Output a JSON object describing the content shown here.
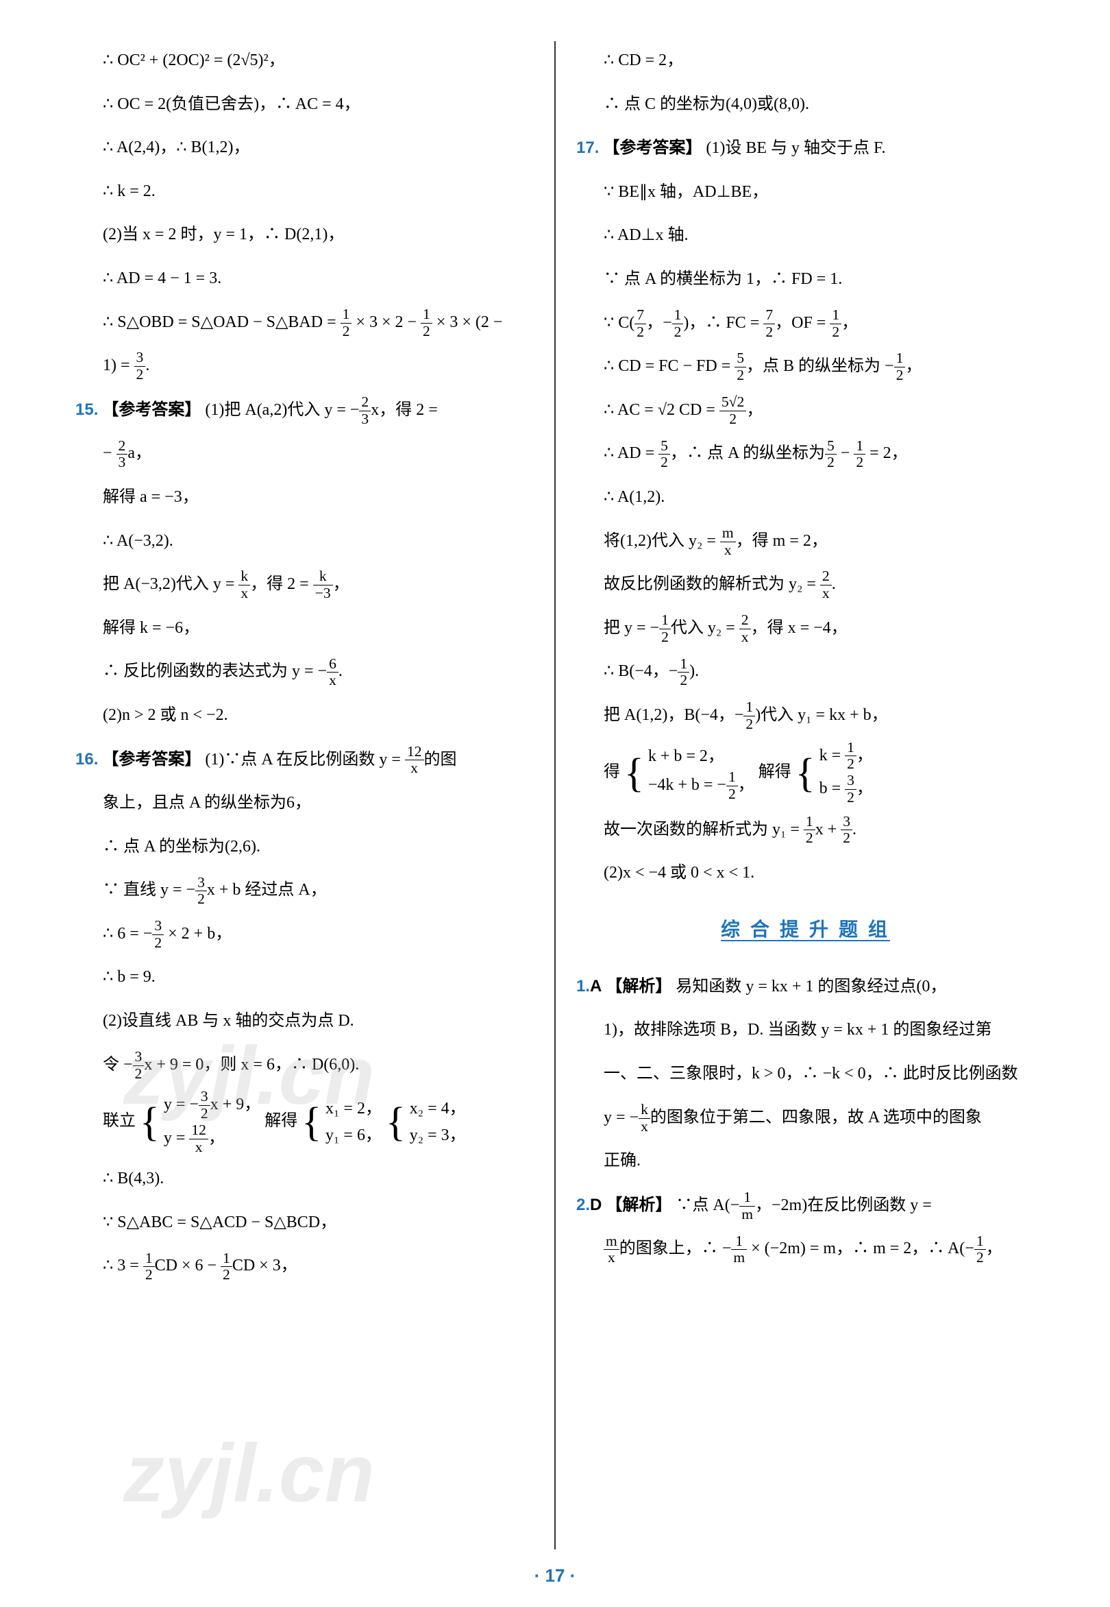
{
  "page_number": "17",
  "watermark_text": "zyjl.cn",
  "section_header": "综 合 提 升 题 组",
  "colors": {
    "question_num": "#1e73be",
    "section_title": "#1e73be",
    "page_num": "#1e73be",
    "text": "#000000",
    "watermark": "rgba(180,180,180,0.25)"
  },
  "left": {
    "l1": "∴ OC² + (2OC)² = (2√5)²，",
    "l2": "∴ OC = 2(负值已舍去)，∴ AC = 4，",
    "l3": "∴ A(2,4)，∴ B(1,2)，",
    "l4": "∴ k = 2.",
    "l5": "(2)当 x = 2 时，y = 1，∴ D(2,1)，",
    "l6": "∴ AD = 4 − 1 = 3.",
    "l7a": "∴ S△OBD = S△OAD − S△BAD = ",
    "l7b": " × 3 × 2 − ",
    "l7c": " × 3 × (2 −",
    "l8a": "1) = ",
    "l8b": ".",
    "q15": "15.",
    "q15_label": "【参考答案】",
    "q15_a": "  (1)把 A(a,2)代入 y = −",
    "q15_b": "x，得 2 =",
    "q15_2a": "− ",
    "q15_2b": "a，",
    "q15_3": "解得 a = −3，",
    "q15_4": "∴ A(−3,2).",
    "q15_5a": "把 A(−3,2)代入 y = ",
    "q15_5b": "，得 2 = ",
    "q15_5c": "，",
    "q15_6": "解得 k = −6，",
    "q15_7a": "∴ 反比例函数的表达式为 y = −",
    "q15_7b": ".",
    "q15_8": "(2)n > 2 或 n < −2.",
    "q16": "16.",
    "q16_label": "【参考答案】",
    "q16_a": "  (1)∵点 A 在反比例函数 y = ",
    "q16_b": "的图",
    "q16_2": "象上，且点 A 的纵坐标为6，",
    "q16_3": "∴ 点 A 的坐标为(2,6).",
    "q16_4a": "∵ 直线 y = −",
    "q16_4b": "x + b 经过点 A，",
    "q16_5a": "∴ 6 = −",
    "q16_5b": " × 2 + b，",
    "q16_6": "∴ b = 9.",
    "q16_7": "(2)设直线 AB 与 x 轴的交点为点 D.",
    "q16_8a": "令 −",
    "q16_8b": "x + 9 = 0，则 x = 6，∴ D(6,0).",
    "q16_9": "联立",
    "q16_9a": "y = −",
    "q16_9b": "x + 9，",
    "q16_9c": "y = ",
    "q16_9d": "，",
    "q16_9e": "解得",
    "q16_9f": "x₁ = 2，",
    "q16_9g": "y₁ = 6，",
    "q16_9h": "x₂ = 4，",
    "q16_9i": "y₂ = 3，",
    "q16_10": "∴ B(4,3).",
    "q16_11": "∵ S△ABC = S△ACD − S△BCD，",
    "q16_12a": "∴ 3 = ",
    "q16_12b": "CD × 6 − ",
    "q16_12c": "CD × 3，"
  },
  "right": {
    "r1": "∴ CD = 2，",
    "r2": "∴ 点 C 的坐标为(4,0)或(8,0).",
    "q17": "17.",
    "q17_label": "【参考答案】",
    "q17_a": "  (1)设 BE 与 y 轴交于点 F.",
    "q17_2": "∵ BE∥x 轴，AD⊥BE，",
    "q17_3": "∴ AD⊥x 轴.",
    "q17_4": "∵ 点 A 的横坐标为 1，∴ FD = 1.",
    "q17_5a": "∵ C(",
    "q17_5b": "，−",
    "q17_5c": ")，∴ FC = ",
    "q17_5d": "，OF = ",
    "q17_5e": "，",
    "q17_6a": "∴ CD = FC − FD = ",
    "q17_6b": "，点 B 的纵坐标为 −",
    "q17_6c": "，",
    "q17_7a": "∴ AC = √2 CD = ",
    "q17_7b": "，",
    "q17_8a": "∴ AD = ",
    "q17_8b": "，∴ 点 A 的纵坐标为",
    "q17_8c": " − ",
    "q17_8d": " = 2，",
    "q17_9": "∴ A(1,2).",
    "q17_10a": "将(1,2)代入 y₂ = ",
    "q17_10b": "，得 m = 2，",
    "q17_11a": "故反比例函数的解析式为 y₂ = ",
    "q17_11b": ".",
    "q17_12a": "把 y = −",
    "q17_12b": "代入 y₂ = ",
    "q17_12c": "，得 x = −4，",
    "q17_13a": "∴ B(−4，−",
    "q17_13b": ").",
    "q17_14a": "把 A(1,2)，B(−4，−",
    "q17_14b": ")代入 y₁ = kx + b，",
    "q17_15": "得",
    "q17_15a": "k + b = 2，",
    "q17_15b": "−4k + b = −",
    "q17_15c": "，",
    "q17_15d": "解得",
    "q17_15e": "k = ",
    "q17_15f": "，",
    "q17_15g": "b = ",
    "q17_15h": "，",
    "q17_16a": "故一次函数的解析式为 y₁ = ",
    "q17_16b": "x + ",
    "q17_16c": ".",
    "q17_17": "(2)x < −4 或 0 < x < 1.",
    "p1": "1.",
    "p1_ans": "A",
    "p1_label": "【解析】",
    "p1_a": "  易知函数 y = kx + 1 的图象经过点(0，",
    "p1_2": "1)，故排除选项 B，D. 当函数 y = kx + 1 的图象经过第",
    "p1_3": "一、二、三象限时，k > 0，∴ −k < 0，∴ 此时反比例函数",
    "p1_4a": "y = −",
    "p1_4b": "的图象位于第二、四象限，故 A 选项中的图象",
    "p1_5": "正确.",
    "p2": "2.",
    "p2_ans": "D",
    "p2_label": "【解析】",
    "p2_a": "  ∵点 A(−",
    "p2_b": "，−2m)在反比例函数 y =",
    "p2_2a": "",
    "p2_2b": "的图象上，∴ −",
    "p2_2c": " × (−2m) = m，∴ m = 2，∴ A(−",
    "p2_2d": "，"
  }
}
